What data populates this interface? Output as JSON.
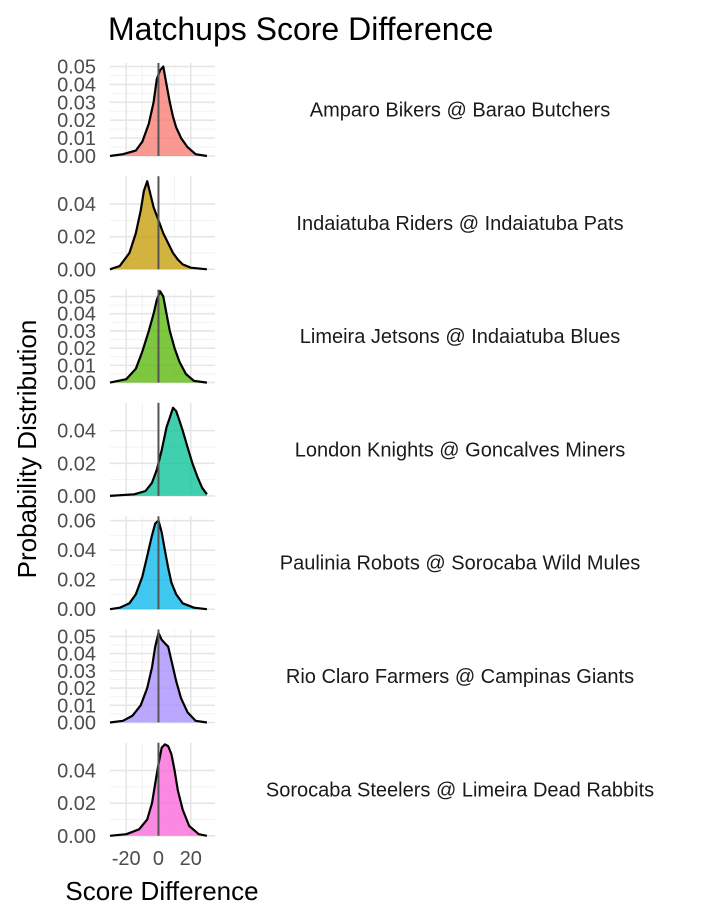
{
  "chart_data": {
    "type": "area",
    "title": "Matchups Score Difference",
    "xlabel": "Score Difference",
    "ylabel": "Probability Distribution",
    "xlim": [
      -30,
      35
    ],
    "x_ticks": [
      -20,
      0,
      20
    ],
    "x_tick_labels": [
      "-20",
      "0",
      "20"
    ],
    "reference_line_x": 0,
    "grid": true,
    "legend": "none",
    "panels": [
      {
        "name": "Amparo Bikers @ Barao Butchers",
        "color": "#F8766D",
        "ylim": [
          0,
          0.052
        ],
        "y_ticks": [
          0.0,
          0.01,
          0.02,
          0.03,
          0.04,
          0.05
        ],
        "y_tick_labels": [
          "0.00",
          "0.01",
          "0.02",
          "0.03",
          "0.04",
          "0.05"
        ],
        "x": [
          -30,
          -22,
          -14,
          -10,
          -6,
          -3,
          -1,
          1,
          3,
          5,
          7,
          9,
          11,
          14,
          18,
          23,
          30
        ],
        "y": [
          0.0,
          0.001,
          0.003,
          0.008,
          0.018,
          0.03,
          0.043,
          0.048,
          0.05,
          0.04,
          0.03,
          0.022,
          0.016,
          0.01,
          0.005,
          0.001,
          0.0
        ]
      },
      {
        "name": "Indaiatuba Riders @ Indaiatuba Pats",
        "color": "#C49A00",
        "ylim": [
          0,
          0.057
        ],
        "y_ticks": [
          0.0,
          0.02,
          0.04
        ],
        "y_tick_labels": [
          "0.00",
          "0.02",
          "0.04"
        ],
        "x": [
          -30,
          -24,
          -18,
          -14,
          -11,
          -9,
          -7,
          -5,
          -3,
          0,
          3,
          6,
          9,
          12,
          15,
          20,
          30
        ],
        "y": [
          0.0,
          0.002,
          0.01,
          0.022,
          0.036,
          0.048,
          0.054,
          0.046,
          0.038,
          0.03,
          0.022,
          0.016,
          0.01,
          0.006,
          0.003,
          0.001,
          0.0
        ]
      },
      {
        "name": "Limeira Jetsons @ Indaiatuba Blues",
        "color": "#53B400",
        "ylim": [
          0,
          0.054
        ],
        "y_ticks": [
          0.0,
          0.01,
          0.02,
          0.03,
          0.04,
          0.05
        ],
        "y_tick_labels": [
          "0.00",
          "0.01",
          "0.02",
          "0.03",
          "0.04",
          "0.05"
        ],
        "x": [
          -30,
          -20,
          -14,
          -10,
          -6,
          -3,
          -1,
          1,
          3,
          5,
          7,
          10,
          13,
          17,
          22,
          30
        ],
        "y": [
          0.0,
          0.002,
          0.008,
          0.018,
          0.03,
          0.04,
          0.048,
          0.053,
          0.05,
          0.04,
          0.03,
          0.02,
          0.012,
          0.005,
          0.001,
          0.0
        ]
      },
      {
        "name": "London Knights @ Goncalves Miners",
        "color": "#00C094",
        "ylim": [
          0,
          0.057
        ],
        "y_ticks": [
          0.0,
          0.02,
          0.04
        ],
        "y_tick_labels": [
          "0.00",
          "0.02",
          "0.04"
        ],
        "x": [
          -30,
          -15,
          -8,
          -4,
          -1,
          2,
          5,
          7,
          9,
          11,
          13,
          15,
          18,
          21,
          24,
          27,
          30
        ],
        "y": [
          0.0,
          0.001,
          0.003,
          0.008,
          0.016,
          0.028,
          0.042,
          0.048,
          0.054,
          0.052,
          0.046,
          0.04,
          0.03,
          0.02,
          0.012,
          0.005,
          0.001
        ]
      },
      {
        "name": "Paulinia Robots @ Sorocaba Wild Mules",
        "color": "#00B6EB",
        "ylim": [
          0,
          0.063
        ],
        "y_ticks": [
          0.0,
          0.02,
          0.04,
          0.06
        ],
        "y_tick_labels": [
          "0.00",
          "0.02",
          "0.04",
          "0.06"
        ],
        "x": [
          -30,
          -24,
          -18,
          -14,
          -10,
          -7,
          -4,
          -2,
          0,
          2,
          4,
          6,
          8,
          11,
          15,
          22,
          30
        ],
        "y": [
          0.0,
          0.001,
          0.004,
          0.01,
          0.022,
          0.036,
          0.05,
          0.058,
          0.06,
          0.052,
          0.04,
          0.028,
          0.018,
          0.01,
          0.004,
          0.001,
          0.0
        ]
      },
      {
        "name": "Rio Claro Farmers @ Campinas Giants",
        "color": "#A58AFF",
        "ylim": [
          0,
          0.054
        ],
        "y_ticks": [
          0.0,
          0.01,
          0.02,
          0.03,
          0.04,
          0.05
        ],
        "y_tick_labels": [
          "0.00",
          "0.01",
          "0.02",
          "0.03",
          "0.04",
          "0.05"
        ],
        "x": [
          -30,
          -22,
          -16,
          -11,
          -7,
          -4,
          -2,
          0,
          2,
          4,
          6,
          8,
          11,
          14,
          18,
          23,
          30
        ],
        "y": [
          0.0,
          0.001,
          0.004,
          0.01,
          0.02,
          0.032,
          0.044,
          0.052,
          0.048,
          0.046,
          0.044,
          0.036,
          0.024,
          0.014,
          0.006,
          0.001,
          0.0
        ]
      },
      {
        "name": "Sorocaba Steelers @ Limeira Dead Rabbits",
        "color": "#FB61D7",
        "ylim": [
          0,
          0.057
        ],
        "y_ticks": [
          0.0,
          0.02,
          0.04
        ],
        "y_tick_labels": [
          "0.00",
          "0.02",
          "0.04"
        ],
        "x": [
          -30,
          -20,
          -12,
          -7,
          -4,
          -2,
          0,
          2,
          4,
          6,
          8,
          10,
          12,
          15,
          19,
          25,
          30
        ],
        "y": [
          0.0,
          0.001,
          0.004,
          0.01,
          0.02,
          0.032,
          0.044,
          0.054,
          0.056,
          0.055,
          0.05,
          0.04,
          0.028,
          0.016,
          0.006,
          0.001,
          0.0
        ]
      }
    ]
  }
}
